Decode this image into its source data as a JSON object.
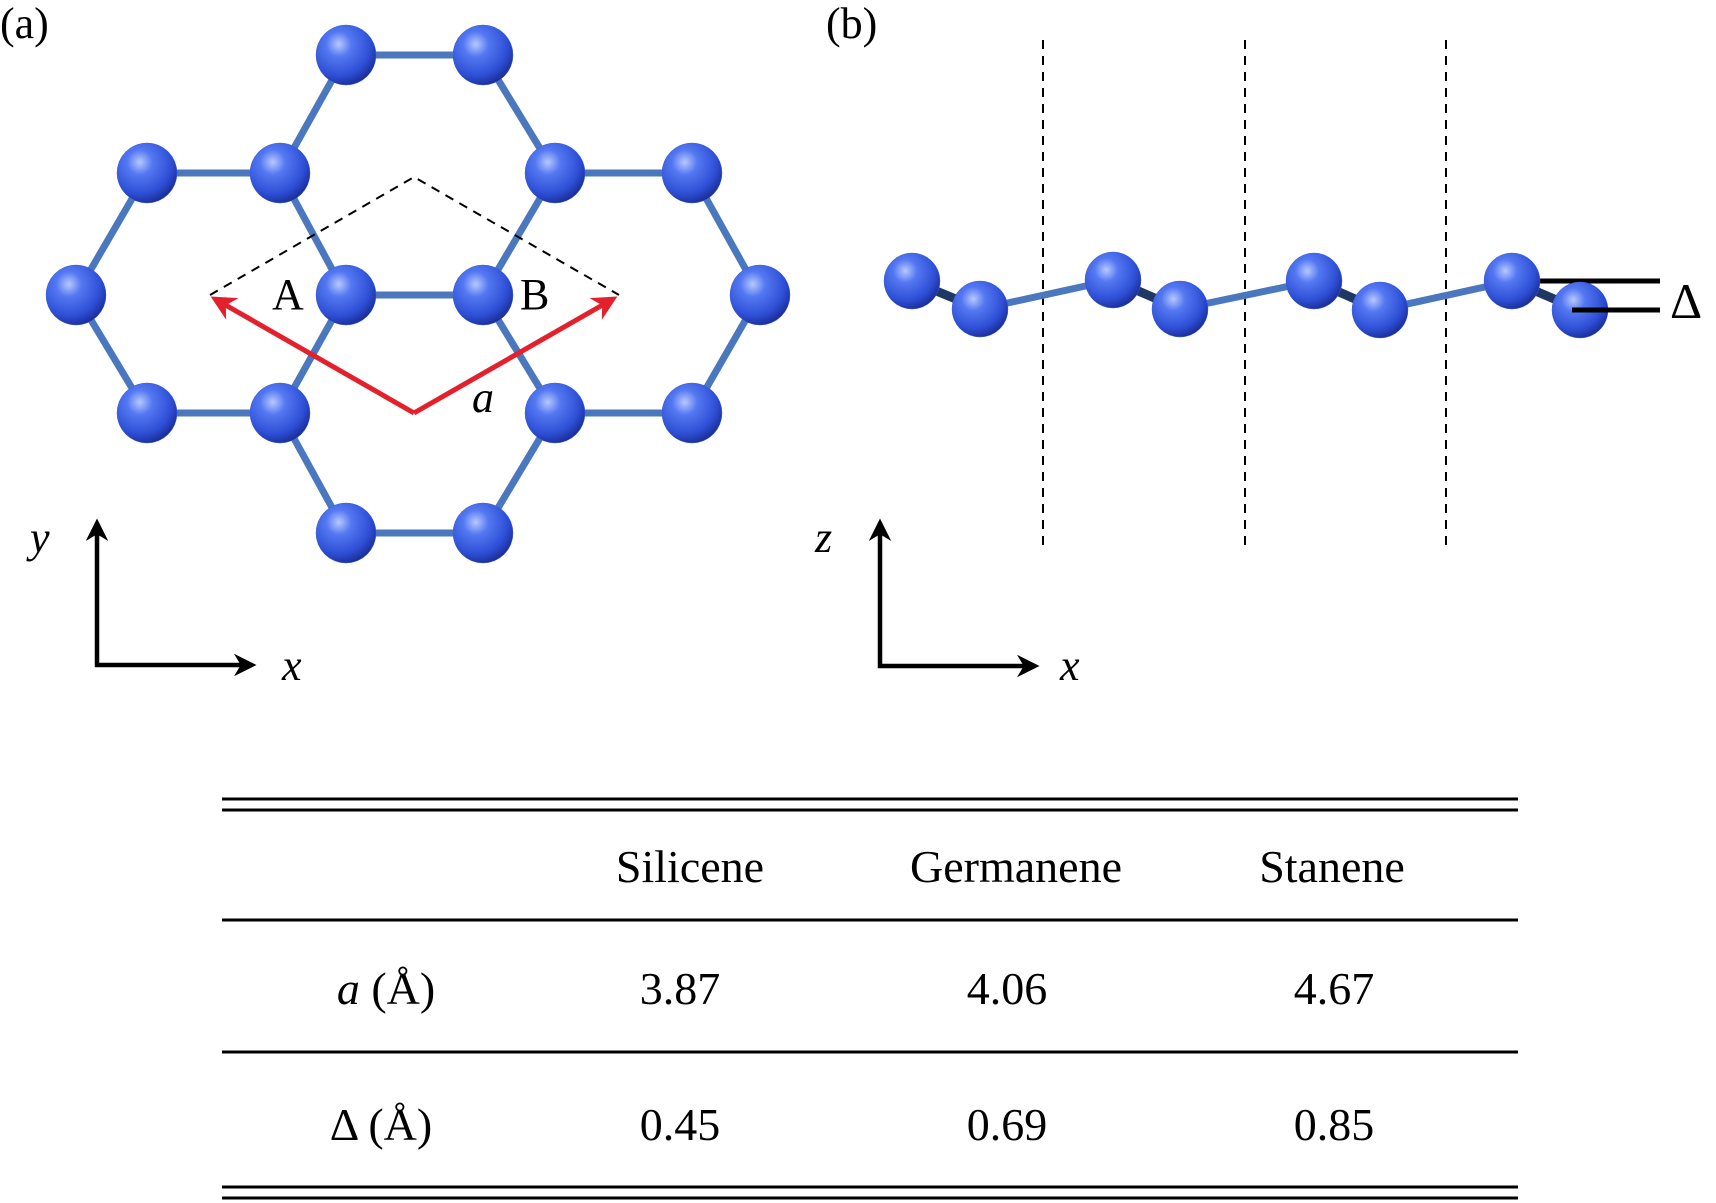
{
  "panel_a": {
    "label": "(a)",
    "site_a": "A",
    "site_b": "B",
    "vector_label": "a",
    "axis_x": "x",
    "axis_y": "y"
  },
  "panel_b": {
    "label": "(b)",
    "axis_x": "x",
    "axis_z": "z",
    "buckling_label": "Δ"
  },
  "colors": {
    "atom": "#3a5fe0",
    "bond": "#4a77bd",
    "vector": "#e4202c"
  },
  "table": {
    "headers": [
      "",
      "Silicene",
      "Germanene",
      "Stanene"
    ],
    "rows": [
      {
        "symbol": "a",
        "unit": " (Å)",
        "values": [
          "3.87",
          "4.06",
          "4.67"
        ]
      },
      {
        "symbol": "Δ",
        "unit": " (Å)",
        "values": [
          "0.45",
          "0.69",
          "0.85"
        ]
      }
    ]
  }
}
